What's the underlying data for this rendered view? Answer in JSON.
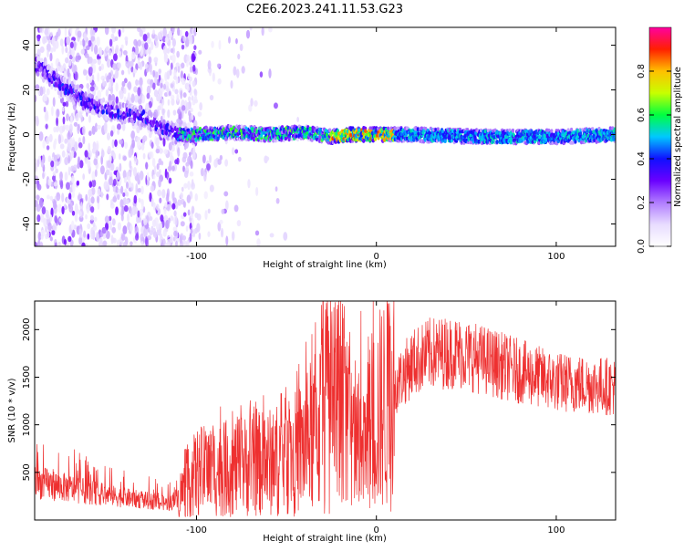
{
  "title": "C2E6.2023.241.11.53.G23",
  "chart_data": [
    {
      "type": "heatmap",
      "xlabel": "Height of straight line (km)",
      "ylabel": "Frequency (Hz)",
      "xlim": [
        -190,
        133
      ],
      "ylim": [
        -50,
        48
      ],
      "xticks": [
        -100,
        0,
        100
      ],
      "xtick_labels": [
        "-100",
        "0",
        "100"
      ],
      "yticks": [
        -40,
        -20,
        0,
        20,
        40
      ],
      "ytick_labels": [
        "-40",
        "-20",
        "0",
        "20",
        "40"
      ],
      "grid": false,
      "colorbar": {
        "label": "Normalized spectral amplitude",
        "range": [
          0,
          1
        ],
        "ticks": [
          0.0,
          0.2,
          0.4,
          0.6,
          0.8
        ],
        "tick_labels": [
          "0.0",
          "0.2",
          "0.4",
          "0.6",
          "0.8"
        ],
        "colormap": [
          "#ffffff",
          "#e8dcff",
          "#b07cff",
          "#6a00ff",
          "#1010ff",
          "#00c8ff",
          "#00ff40",
          "#c8ff00",
          "#ffc000",
          "#ff2000",
          "#ff00a0"
        ]
      },
      "ridge": {
        "x": [
          -190,
          -175,
          -160,
          -145,
          -130,
          -110,
          -100,
          -80,
          -60,
          -40,
          -25,
          -15,
          0,
          20,
          60,
          100,
          133
        ],
        "y": [
          32,
          22,
          14,
          10,
          8,
          0,
          0,
          1,
          0,
          1,
          -1,
          0,
          0,
          0,
          -1,
          -1,
          0
        ]
      }
    },
    {
      "type": "line",
      "xlabel": "Height of straight line (km)",
      "ylabel": "SNR (10 * v/v)",
      "xlim": [
        -190,
        133
      ],
      "ylim": [
        0,
        2300
      ],
      "xticks": [
        -100,
        0,
        100
      ],
      "xtick_labels": [
        "-100",
        "0",
        "100"
      ],
      "yticks": [
        500,
        1000,
        1500,
        2000
      ],
      "ytick_labels": [
        "500",
        "1000",
        "1500",
        "2000"
      ],
      "grid": false,
      "series": [
        {
          "color": "#ee3030",
          "envelope_x": [
            -190,
            -170,
            -150,
            -130,
            -115,
            -110,
            -100,
            -80,
            -60,
            -45,
            -35,
            -25,
            -15,
            -8,
            -5,
            0,
            10,
            20,
            30,
            45,
            60,
            80,
            100,
            133
          ],
          "envelope_y": [
            400,
            330,
            260,
            210,
            170,
            250,
            500,
            550,
            600,
            700,
            900,
            1200,
            1000,
            600,
            900,
            1100,
            1400,
            1650,
            1750,
            1760,
            1680,
            1560,
            1450,
            1400
          ]
        }
      ]
    }
  ]
}
